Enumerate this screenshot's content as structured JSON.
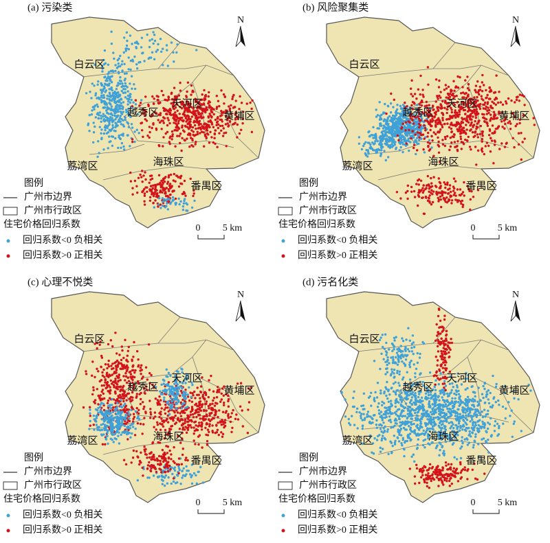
{
  "panels": [
    {
      "label": "(a) 污染类"
    },
    {
      "label": "(b) 风险聚集类"
    },
    {
      "label": "(c) 心理不悦类"
    },
    {
      "label": "(d) 污名化类"
    }
  ],
  "districts": [
    "白云区",
    "越秀区",
    "天河区",
    "黄埔区",
    "荔湾区",
    "海珠区",
    "番禺区"
  ],
  "legend": {
    "title": "图例",
    "boundary": "广州市边界",
    "admin": "广州市行政区",
    "coef_title": "住宅价格回归系数",
    "negative": "回归系数<0 负相关",
    "positive": "回归系数>0 正相关"
  },
  "scale": {
    "zero": "0",
    "distance": "5 km"
  },
  "north": "N"
}
